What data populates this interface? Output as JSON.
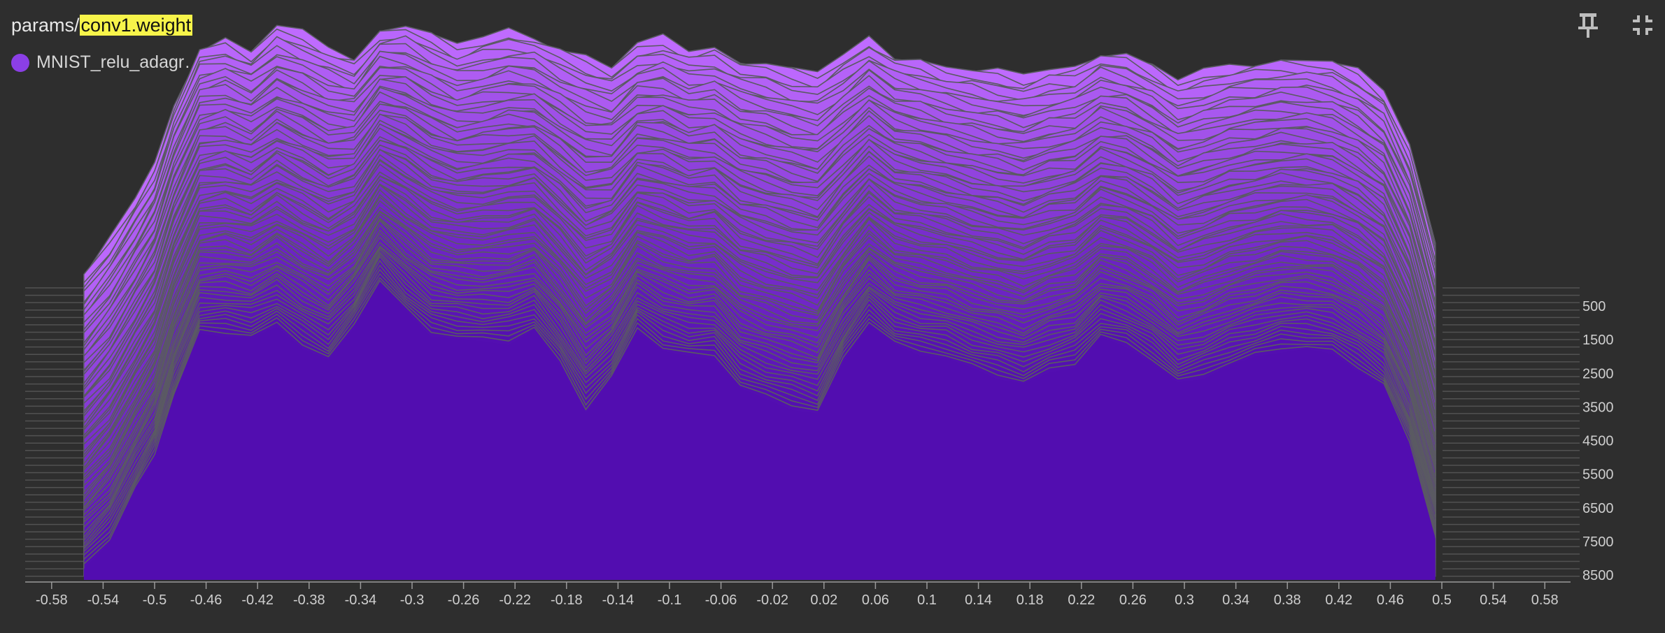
{
  "card": {
    "title_prefix": "params/",
    "title_highlight": "conv1.weight",
    "legend_label": "MNIST_relu_adagr…",
    "legend_color": "#8b3fe6",
    "pin_icon": "pin-icon",
    "collapse_icon": "collapse-icon"
  },
  "chart_data": {
    "type": "area",
    "mode": "offset histogram",
    "x_ticks": [
      "-0.58",
      "-0.54",
      "-0.5",
      "-0.46",
      "-0.42",
      "-0.38",
      "-0.34",
      "-0.3",
      "-0.26",
      "-0.22",
      "-0.18",
      "-0.14",
      "-0.1",
      "-0.06",
      "-0.02",
      "0.02",
      "0.06",
      "0.1",
      "0.14",
      "0.18",
      "0.22",
      "0.26",
      "0.3",
      "0.34",
      "0.38",
      "0.42",
      "0.46",
      "0.5",
      "0.54",
      "0.58"
    ],
    "y_ticks": [
      "500",
      "1500",
      "2500",
      "3500",
      "4500",
      "5500",
      "6500",
      "7500",
      "8500"
    ],
    "xlim": [
      -0.6,
      0.6
    ],
    "ylim": [
      0,
      8500
    ],
    "bin_x": [
      -0.555,
      -0.535,
      -0.515,
      -0.5,
      -0.485,
      -0.465,
      -0.445,
      -0.425,
      -0.405,
      -0.385,
      -0.365,
      -0.345,
      -0.325,
      -0.305,
      -0.285,
      -0.265,
      -0.245,
      -0.225,
      -0.205,
      -0.185,
      -0.165,
      -0.145,
      -0.125,
      -0.105,
      -0.085,
      -0.065,
      -0.045,
      -0.025,
      -0.005,
      0.015,
      0.035,
      0.055,
      0.075,
      0.095,
      0.115,
      0.135,
      0.155,
      0.175,
      0.195,
      0.215,
      0.235,
      0.255,
      0.275,
      0.295,
      0.315,
      0.335,
      0.355,
      0.375,
      0.395,
      0.415,
      0.435,
      0.455,
      0.475,
      0.495
    ],
    "front_counts": [
      300,
      1000,
      2300,
      3200,
      4800,
      6400,
      6400,
      6300,
      6600,
      6100,
      5700,
      6600,
      7800,
      7000,
      6400,
      6300,
      6200,
      6200,
      6500,
      5600,
      4400,
      5200,
      6500,
      6000,
      5800,
      5800,
      5000,
      4700,
      4500,
      4300,
      5700,
      6700,
      6100,
      5900,
      5800,
      5500,
      5300,
      5100,
      5400,
      5600,
      6300,
      6100,
      5700,
      5100,
      5300,
      5600,
      5800,
      6000,
      6000,
      5900,
      5500,
      5000,
      3500,
      1100
    ],
    "back_counts": [
      300,
      1200,
      2300,
      3200,
      4800,
      6300,
      6500,
      6200,
      6800,
      6600,
      6300,
      6000,
      6800,
      6900,
      6600,
      6300,
      6500,
      6700,
      6600,
      6300,
      6100,
      5800,
      6300,
      6500,
      6200,
      6300,
      6000,
      5900,
      5700,
      5600,
      6000,
      6500,
      6100,
      6000,
      5800,
      5700,
      5600,
      5500,
      5700,
      5800,
      6200,
      6100,
      5800,
      5400,
      5600,
      5800,
      5900,
      6000,
      6000,
      5900,
      5600,
      5100,
      3700,
      1200
    ],
    "step_count": 80,
    "colors": {
      "front": "#520db0",
      "back": "#bf6bff",
      "edge": "#5a5a62",
      "grid": "#6a6a6a",
      "background": "#2e2e2e"
    }
  }
}
